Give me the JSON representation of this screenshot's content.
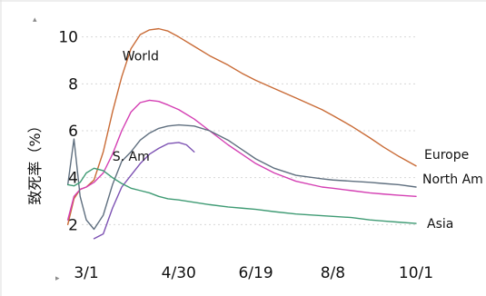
{
  "chart_data": {
    "type": "line",
    "title": "",
    "xlabel": "",
    "ylabel": "致死率（%）",
    "x_ticks": [
      "3/1",
      "4/30",
      "6/19",
      "8/8",
      "10/1"
    ],
    "y_ticks": [
      2,
      4,
      6,
      8,
      10
    ],
    "xlim": [
      "3/1",
      "10/1"
    ],
    "ylim": [
      1.2,
      10.8
    ],
    "grid": true,
    "series": [
      {
        "name": "Europe",
        "color": "#c96b36",
        "x": [
          "2/18",
          "2/22",
          "2/26",
          "3/1",
          "3/6",
          "3/12",
          "3/18",
          "3/24",
          "3/30",
          "4/5",
          "4/11",
          "4/17",
          "4/23",
          "4/30",
          "5/10",
          "5/20",
          "6/1",
          "6/10",
          "6/19",
          "7/1",
          "7/15",
          "8/1",
          "8/8",
          "8/20",
          "9/1",
          "9/10",
          "9/20",
          "10/1"
        ],
        "values": [
          2.0,
          3.1,
          3.5,
          3.6,
          3.9,
          5.1,
          6.8,
          8.3,
          9.5,
          10.1,
          10.3,
          10.35,
          10.25,
          10.0,
          9.6,
          9.2,
          8.8,
          8.45,
          8.15,
          7.8,
          7.4,
          6.9,
          6.65,
          6.2,
          5.7,
          5.3,
          4.9,
          4.5
        ]
      },
      {
        "name": "World",
        "color": "#d43fb3",
        "x": [
          "2/18",
          "2/22",
          "2/26",
          "3/1",
          "3/6",
          "3/12",
          "3/18",
          "3/24",
          "3/30",
          "4/5",
          "4/11",
          "4/17",
          "4/23",
          "4/30",
          "5/10",
          "5/20",
          "6/1",
          "6/10",
          "6/19",
          "7/1",
          "7/15",
          "8/1",
          "8/8",
          "8/20",
          "9/1",
          "9/10",
          "9/20",
          "10/1"
        ],
        "values": [
          2.2,
          3.2,
          3.5,
          3.6,
          3.8,
          4.2,
          5.0,
          6.0,
          6.8,
          7.2,
          7.3,
          7.25,
          7.1,
          6.9,
          6.5,
          6.0,
          5.4,
          5.0,
          4.6,
          4.2,
          3.85,
          3.6,
          3.55,
          3.45,
          3.35,
          3.3,
          3.25,
          3.2
        ]
      },
      {
        "name": "North Am",
        "color": "#5f6f7f",
        "x": [
          "2/18",
          "2/22",
          "2/26",
          "3/1",
          "3/6",
          "3/12",
          "3/18",
          "3/24",
          "3/30",
          "4/5",
          "4/11",
          "4/17",
          "4/23",
          "4/30",
          "5/10",
          "5/20",
          "6/1",
          "6/10",
          "6/19",
          "7/1",
          "7/15",
          "8/1",
          "8/8",
          "8/20",
          "9/1",
          "9/10",
          "9/20",
          "10/1"
        ],
        "values": [
          3.7,
          5.65,
          3.2,
          2.2,
          1.8,
          2.4,
          3.7,
          4.7,
          5.1,
          5.6,
          5.9,
          6.1,
          6.2,
          6.25,
          6.2,
          6.0,
          5.6,
          5.2,
          4.8,
          4.4,
          4.1,
          3.95,
          3.9,
          3.85,
          3.8,
          3.75,
          3.7,
          3.6
        ]
      },
      {
        "name": "S. Am",
        "color": "#7d52b3",
        "x": [
          "3/6",
          "3/12",
          "3/18",
          "3/24",
          "3/30",
          "4/5",
          "4/11",
          "4/17",
          "4/23",
          "4/30",
          "5/5",
          "5/10"
        ],
        "values": [
          1.4,
          1.6,
          2.7,
          3.6,
          4.1,
          4.6,
          5.0,
          5.25,
          5.45,
          5.5,
          5.4,
          5.1
        ]
      },
      {
        "name": "Asia",
        "color": "#3f9b74",
        "x": [
          "2/18",
          "2/22",
          "2/26",
          "3/1",
          "3/6",
          "3/12",
          "3/18",
          "3/24",
          "3/30",
          "4/5",
          "4/11",
          "4/17",
          "4/23",
          "4/30",
          "5/10",
          "5/20",
          "6/1",
          "6/10",
          "6/19",
          "7/1",
          "7/15",
          "8/1",
          "8/8",
          "8/20",
          "9/1",
          "9/10",
          "9/20",
          "10/1"
        ],
        "values": [
          3.7,
          3.65,
          3.8,
          4.2,
          4.4,
          4.3,
          4.0,
          3.75,
          3.55,
          3.45,
          3.35,
          3.2,
          3.1,
          3.05,
          2.95,
          2.85,
          2.75,
          2.7,
          2.65,
          2.55,
          2.45,
          2.38,
          2.35,
          2.3,
          2.2,
          2.15,
          2.1,
          2.05
        ]
      }
    ],
    "annotations": [
      {
        "text": "World",
        "series": "World"
      },
      {
        "text": "S. Am",
        "series": "S. Am"
      },
      {
        "text": "Europe",
        "series": "Europe"
      },
      {
        "text": "North Am",
        "series": "North Am"
      },
      {
        "text": "Asia",
        "series": "Asia"
      }
    ]
  }
}
